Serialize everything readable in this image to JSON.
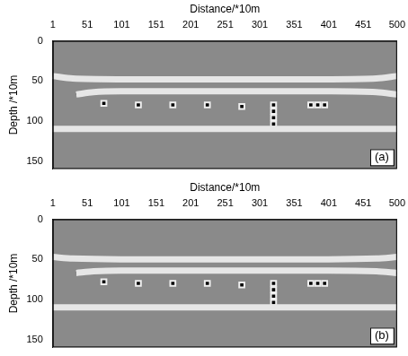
{
  "chart_data": [
    {
      "type": "scatter",
      "x_label": "Distance/*10m",
      "y_label": "Depth /*10m",
      "annotations": [
        "(a)"
      ],
      "xlim": [
        1,
        500
      ],
      "xticks": [
        1,
        51,
        101,
        151,
        201,
        251,
        301,
        351,
        401,
        451,
        500
      ],
      "ylim": [
        0,
        160
      ],
      "yticks": [
        0,
        50,
        100,
        150
      ],
      "grid": false,
      "series": [
        {
          "type": "line",
          "color": "#111111",
          "line_style": "solid",
          "x": [
            1,
            30,
            100,
            250,
            400,
            470,
            500
          ],
          "values": [
            44,
            47,
            48,
            48,
            48,
            47,
            44
          ]
        },
        {
          "type": "line",
          "color": "#000000",
          "line_style": "solid",
          "x": [
            35,
            60,
            100,
            250,
            400,
            470,
            500
          ],
          "values": [
            67,
            64,
            63,
            63,
            63,
            64,
            67
          ]
        },
        {
          "type": "line",
          "color": "#555555",
          "line_style": "solid",
          "x": [
            1,
            500
          ],
          "values": [
            110,
            110
          ]
        },
        {
          "type": "scatter",
          "color": "#000000",
          "marker": "rect",
          "x": [
            75,
            125,
            175,
            225,
            275,
            321,
            321,
            321,
            321,
            375,
            385,
            395
          ],
          "values": [
            78,
            80,
            80,
            80,
            82,
            80,
            88,
            96,
            104,
            80,
            80,
            80
          ]
        }
      ]
    },
    {
      "type": "scatter",
      "x_label": "Distance/*10m",
      "y_label": "Depth /*10m",
      "annotations": [
        "(b)"
      ],
      "xlim": [
        1,
        500
      ],
      "xticks": [
        1,
        51,
        101,
        151,
        201,
        251,
        301,
        351,
        401,
        451,
        500
      ],
      "ylim": [
        0,
        160
      ],
      "yticks": [
        0,
        50,
        100,
        150
      ],
      "grid": false,
      "series": [
        {
          "type": "line",
          "color": "#111111",
          "line_style": "solid",
          "x": [
            1,
            30,
            100,
            250,
            400,
            470,
            500
          ],
          "values": [
            47,
            49,
            50,
            50,
            50,
            49,
            47
          ]
        },
        {
          "type": "line",
          "color": "#000000",
          "line_style": "solid",
          "x": [
            35,
            60,
            100,
            250,
            400,
            470,
            500
          ],
          "values": [
            67,
            65,
            64,
            64,
            64,
            65,
            67
          ]
        },
        {
          "type": "line",
          "color": "#333333",
          "line_style": "solid",
          "x": [
            1,
            500
          ],
          "values": [
            110,
            110
          ]
        },
        {
          "type": "scatter",
          "color": "#000000",
          "marker": "rect",
          "x": [
            75,
            125,
            175,
            225,
            275,
            321,
            321,
            321,
            321,
            375,
            385,
            395
          ],
          "values": [
            78,
            80,
            80,
            80,
            82,
            80,
            88,
            96,
            104,
            80,
            80,
            80
          ]
        }
      ]
    }
  ]
}
